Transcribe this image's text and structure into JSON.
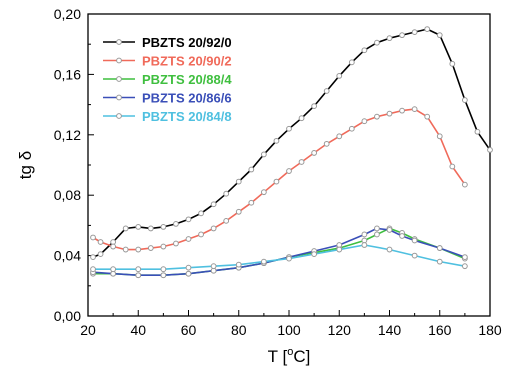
{
  "chart_data": {
    "type": "line",
    "xlabel": "T [",
    "xlabel_sup": "o",
    "xlabel_end": "C]",
    "ylabel": "tg δ",
    "xlim": [
      20,
      180
    ],
    "ylim": [
      0,
      0.2
    ],
    "xticks": [
      20,
      40,
      60,
      80,
      100,
      120,
      140,
      160,
      180
    ],
    "yticks": [
      0.0,
      0.04,
      0.08,
      0.12,
      0.16,
      0.2
    ],
    "ytick_labels": [
      "0,00",
      "0,04",
      "0,08",
      "0,12",
      "0,16",
      "0,20"
    ],
    "grid": false,
    "legend_position": "top-left",
    "series": [
      {
        "name": "PBZTS 20/92/0",
        "color": "#000000",
        "x": [
          22,
          25,
          30,
          35,
          40,
          45,
          50,
          55,
          60,
          65,
          70,
          75,
          80,
          85,
          90,
          95,
          100,
          105,
          110,
          115,
          120,
          125,
          130,
          135,
          140,
          145,
          150,
          155,
          160,
          165,
          170,
          175,
          180
        ],
        "y": [
          0.039,
          0.041,
          0.049,
          0.058,
          0.059,
          0.058,
          0.059,
          0.061,
          0.064,
          0.068,
          0.074,
          0.081,
          0.089,
          0.097,
          0.107,
          0.116,
          0.124,
          0.131,
          0.139,
          0.149,
          0.159,
          0.168,
          0.176,
          0.181,
          0.184,
          0.186,
          0.188,
          0.19,
          0.186,
          0.167,
          0.143,
          0.122,
          0.11
        ]
      },
      {
        "name": "PBZTS 20/90/2",
        "color": "#f06a5a",
        "x": [
          22,
          25,
          30,
          35,
          40,
          45,
          50,
          55,
          60,
          65,
          70,
          75,
          80,
          85,
          90,
          95,
          100,
          105,
          110,
          115,
          120,
          125,
          130,
          135,
          140,
          145,
          150,
          155,
          160,
          165,
          170
        ],
        "y": [
          0.052,
          0.049,
          0.046,
          0.044,
          0.044,
          0.045,
          0.046,
          0.048,
          0.051,
          0.054,
          0.058,
          0.063,
          0.069,
          0.075,
          0.082,
          0.089,
          0.096,
          0.102,
          0.108,
          0.114,
          0.119,
          0.124,
          0.129,
          0.132,
          0.134,
          0.136,
          0.137,
          0.132,
          0.119,
          0.099,
          0.087
        ]
      },
      {
        "name": "PBZTS 20/88/4",
        "color": "#3fbf3f",
        "x": [
          22,
          30,
          40,
          50,
          60,
          70,
          80,
          90,
          100,
          110,
          120,
          130,
          135,
          140,
          145,
          150,
          160,
          170
        ],
        "y": [
          0.028,
          0.028,
          0.027,
          0.027,
          0.028,
          0.03,
          0.032,
          0.035,
          0.039,
          0.042,
          0.045,
          0.05,
          0.054,
          0.058,
          0.055,
          0.051,
          0.045,
          0.038
        ]
      },
      {
        "name": "PBZTS 20/86/6",
        "color": "#3a4fb8",
        "x": [
          22,
          30,
          40,
          50,
          60,
          70,
          80,
          90,
          100,
          110,
          120,
          130,
          135,
          140,
          145,
          150,
          160,
          170
        ],
        "y": [
          0.029,
          0.028,
          0.027,
          0.027,
          0.028,
          0.03,
          0.032,
          0.035,
          0.039,
          0.043,
          0.047,
          0.054,
          0.058,
          0.057,
          0.053,
          0.05,
          0.045,
          0.039
        ]
      },
      {
        "name": "PBZTS 20/84/8",
        "color": "#4fc0e0",
        "x": [
          22,
          30,
          40,
          50,
          60,
          70,
          80,
          90,
          100,
          110,
          120,
          130,
          140,
          150,
          160,
          170
        ],
        "y": [
          0.031,
          0.031,
          0.031,
          0.031,
          0.032,
          0.033,
          0.034,
          0.036,
          0.038,
          0.041,
          0.044,
          0.047,
          0.044,
          0.04,
          0.036,
          0.033
        ]
      }
    ]
  }
}
